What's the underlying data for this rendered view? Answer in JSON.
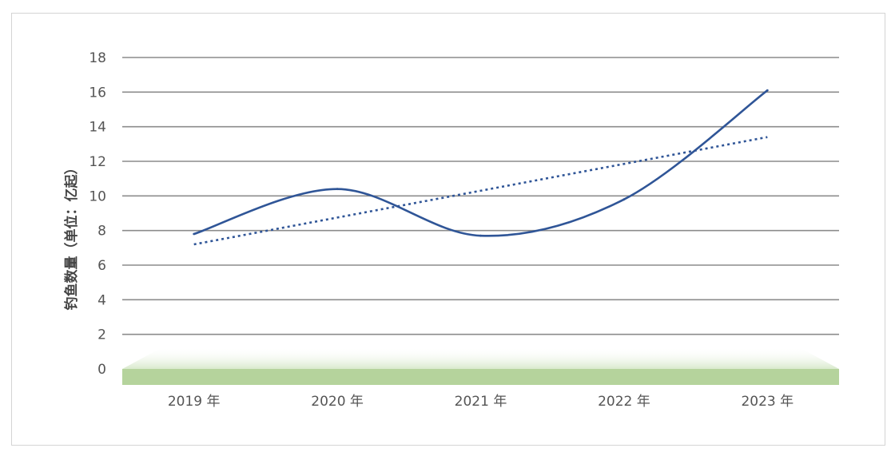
{
  "chart_data": {
    "type": "line",
    "ylabel": "钓鱼数量（单位：亿起）",
    "categories": [
      "2019 年",
      "2020 年",
      "2021 年",
      "2022 年",
      "2023 年"
    ],
    "yticks": [
      "0",
      "2",
      "4",
      "6",
      "8",
      "10",
      "12",
      "14",
      "16",
      "18"
    ],
    "ylim": [
      0,
      18
    ],
    "grid": true,
    "series": [
      {
        "values": [
          7.8,
          10.4,
          7.7,
          9.8,
          16.1
        ]
      }
    ],
    "trendline": {
      "style": "dotted",
      "start": 7.2,
      "end": 13.4
    },
    "colors": {
      "line": "#2f5597",
      "trend": "#2f5597",
      "grid": "#8c8c8c",
      "floor": "#b5d39c"
    }
  }
}
